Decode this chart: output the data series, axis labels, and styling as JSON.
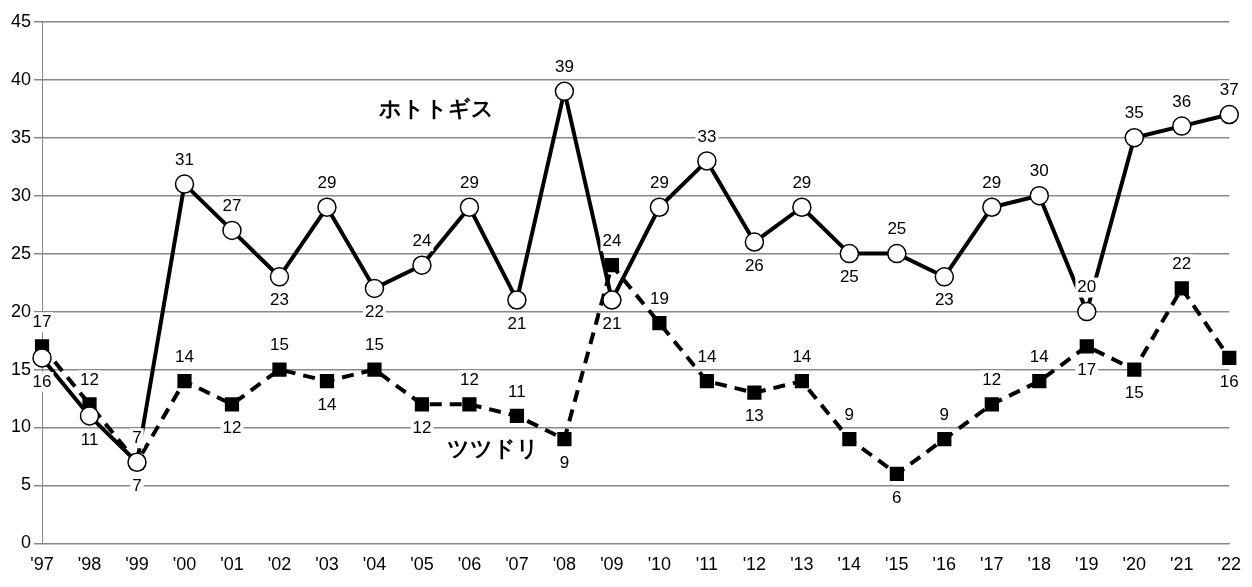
{
  "chart_data": {
    "type": "line",
    "categories": [
      "'97",
      "'98",
      "'99",
      "'00",
      "'01",
      "'02",
      "'03",
      "'04",
      "'05",
      "'06",
      "'07",
      "'08",
      "'09",
      "'10",
      "'11",
      "'12",
      "'13",
      "'14",
      "'15",
      "'16",
      "'17",
      "'18",
      "'19",
      "'20",
      "'21",
      "'22"
    ],
    "series": [
      {
        "name": "ホトトギス",
        "color": "#000000",
        "marker": "circle",
        "line_style": "solid",
        "values": [
          16,
          11,
          7,
          31,
          27,
          23,
          29,
          22,
          24,
          29,
          21,
          39,
          21,
          29,
          33,
          26,
          29,
          25,
          25,
          23,
          29,
          30,
          20,
          35,
          36,
          37
        ]
      },
      {
        "name": "ツツドリ",
        "color": "#000000",
        "marker": "square",
        "line_style": "dashed",
        "values": [
          17,
          12,
          7,
          14,
          12,
          15,
          14,
          15,
          12,
          12,
          11,
          9,
          24,
          19,
          14,
          13,
          14,
          9,
          6,
          9,
          12,
          14,
          17,
          15,
          22,
          16
        ]
      }
    ],
    "ylim": [
      0,
      45
    ],
    "yticks": [
      0,
      5,
      10,
      15,
      20,
      25,
      30,
      35,
      40,
      45
    ],
    "grid": "y",
    "legend": false,
    "data_labels": true
  }
}
